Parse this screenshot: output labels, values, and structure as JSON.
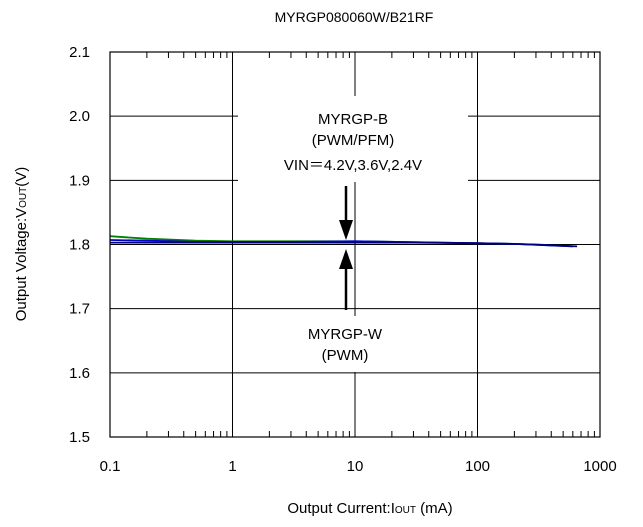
{
  "chart_data": {
    "type": "line",
    "title": "MYRGP080060W/B21RF",
    "xlabel_main": "Output Current:I",
    "xlabel_sub": "OUT",
    "xlabel_tail": " (mA)",
    "ylabel_main": "Output Voltage:V",
    "ylabel_sub": "OUT",
    "ylabel_tail": "(V)",
    "x_scale": "log",
    "xlim": [
      0.1,
      1000
    ],
    "ylim": [
      1.5,
      2.1
    ],
    "grid": true,
    "x_ticks": [
      "0.1",
      "1",
      "10",
      "100",
      "1000"
    ],
    "y_ticks": [
      "1.5",
      "1.6",
      "1.7",
      "1.8",
      "1.9",
      "2.0",
      "2.1"
    ],
    "annotations": {
      "upper_line1": "MYRGP-B",
      "upper_line2": "(PWM/PFM)",
      "upper_line3": "VIN＝4.2V,3.6V,2.4V",
      "lower_line1": "MYRGP-W",
      "lower_line2": "(PWM)"
    },
    "series": [
      {
        "color": "#008000",
        "x": [
          0.1,
          0.2,
          0.5,
          1,
          3,
          10,
          50,
          200,
          600
        ],
        "y": [
          1.813,
          1.809,
          1.806,
          1.805,
          1.805,
          1.805,
          1.803,
          1.801,
          1.797
        ]
      },
      {
        "color": "#0000cc",
        "x": [
          0.1,
          0.2,
          0.5,
          1,
          3,
          10,
          50,
          200,
          600
        ],
        "y": [
          1.807,
          1.806,
          1.804,
          1.804,
          1.804,
          1.805,
          1.803,
          1.801,
          1.797
        ]
      },
      {
        "color": "#000080",
        "x": [
          0.1,
          0.3,
          1,
          3,
          10,
          30,
          100,
          300,
          650
        ],
        "y": [
          1.803,
          1.803,
          1.803,
          1.803,
          1.803,
          1.803,
          1.802,
          1.8,
          1.797
        ]
      }
    ]
  }
}
